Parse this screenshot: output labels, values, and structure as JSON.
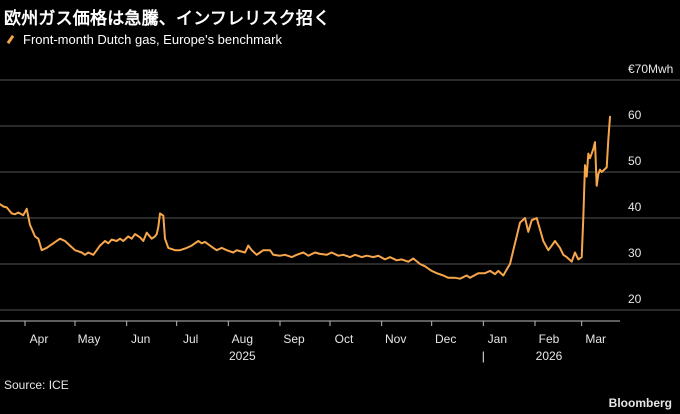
{
  "title": "欧州ガス価格は急騰、インフレリスク招く",
  "legend_label": "Front-month Dutch gas, Europe's benchmark",
  "source": "Source: ICE",
  "brand": "Bloomberg",
  "colors": {
    "line": "#f7a64b",
    "grid": "#555555",
    "background": "#000000"
  },
  "chart_data": {
    "type": "line",
    "title": "欧州ガス価格は急騰、インフレリスク招く",
    "ylabel": "€70Mwh",
    "ylim": [
      20,
      70
    ],
    "yticks": [
      {
        "value": 70,
        "label": "€70Mwh"
      },
      {
        "value": 60,
        "label": "60"
      },
      {
        "value": 50,
        "label": "50"
      },
      {
        "value": 40,
        "label": "40"
      },
      {
        "value": 30,
        "label": "30"
      },
      {
        "value": 20,
        "label": "20"
      }
    ],
    "xlim": [
      "2025-03-17",
      "2026-03-24"
    ],
    "month_labels": [
      {
        "date": "2025-04-01",
        "label": "Apr"
      },
      {
        "date": "2025-05-01",
        "label": "May"
      },
      {
        "date": "2025-06-01",
        "label": "Jun"
      },
      {
        "date": "2025-07-01",
        "label": "Jul"
      },
      {
        "date": "2025-08-01",
        "label": "Aug"
      },
      {
        "date": "2025-09-01",
        "label": "Sep"
      },
      {
        "date": "2025-10-01",
        "label": "Oct"
      },
      {
        "date": "2025-11-01",
        "label": "Nov"
      },
      {
        "date": "2025-12-01",
        "label": "Dec"
      },
      {
        "date": "2026-01-01",
        "label": "Jan"
      },
      {
        "date": "2026-02-01",
        "label": "Feb"
      },
      {
        "date": "2026-03-01",
        "label": "Mar"
      }
    ],
    "year_labels": [
      {
        "date": "2025-08-01",
        "label": "2025"
      },
      {
        "date": "2026-02-01",
        "label": "2026"
      }
    ],
    "year_divider": {
      "date": "2026-01-01",
      "label": "|"
    },
    "grid": true,
    "legend": "top-left",
    "series": [
      {
        "name": "Front-month Dutch gas, Europe's benchmark",
        "points": [
          [
            "2025-03-17",
            43.0
          ],
          [
            "2025-03-19",
            42.5
          ],
          [
            "2025-03-21",
            42.3
          ],
          [
            "2025-03-24",
            41.0
          ],
          [
            "2025-03-26",
            40.8
          ],
          [
            "2025-03-28",
            41.2
          ],
          [
            "2025-03-31",
            40.6
          ],
          [
            "2025-04-02",
            42.0
          ],
          [
            "2025-04-04",
            38.5
          ],
          [
            "2025-04-07",
            36.0
          ],
          [
            "2025-04-09",
            35.5
          ],
          [
            "2025-04-11",
            33.0
          ],
          [
            "2025-04-14",
            33.5
          ],
          [
            "2025-04-16",
            34.0
          ],
          [
            "2025-04-18",
            34.5
          ],
          [
            "2025-04-22",
            35.5
          ],
          [
            "2025-04-25",
            35.0
          ],
          [
            "2025-04-28",
            34.0
          ],
          [
            "2025-05-01",
            33.0
          ],
          [
            "2025-05-05",
            32.5
          ],
          [
            "2025-05-07",
            32.0
          ],
          [
            "2025-05-09",
            32.5
          ],
          [
            "2025-05-12",
            32.0
          ],
          [
            "2025-05-14",
            33.0
          ],
          [
            "2025-05-16",
            34.0
          ],
          [
            "2025-05-19",
            35.0
          ],
          [
            "2025-05-21",
            34.5
          ],
          [
            "2025-05-23",
            35.3
          ],
          [
            "2025-05-26",
            35.0
          ],
          [
            "2025-05-28",
            35.5
          ],
          [
            "2025-05-30",
            35.0
          ],
          [
            "2025-06-02",
            36.0
          ],
          [
            "2025-06-04",
            35.5
          ],
          [
            "2025-06-06",
            36.5
          ],
          [
            "2025-06-09",
            35.8
          ],
          [
            "2025-06-11",
            35.0
          ],
          [
            "2025-06-13",
            36.8
          ],
          [
            "2025-06-16",
            35.5
          ],
          [
            "2025-06-18",
            36.0
          ],
          [
            "2025-06-19",
            36.5
          ],
          [
            "2025-06-20",
            38.0
          ],
          [
            "2025-06-21",
            41.0
          ],
          [
            "2025-06-23",
            40.5
          ],
          [
            "2025-06-24",
            35.5
          ],
          [
            "2025-06-26",
            33.5
          ],
          [
            "2025-06-30",
            33.0
          ],
          [
            "2025-07-03",
            33.0
          ],
          [
            "2025-07-07",
            33.5
          ],
          [
            "2025-07-10",
            34.0
          ],
          [
            "2025-07-14",
            35.0
          ],
          [
            "2025-07-16",
            34.5
          ],
          [
            "2025-07-18",
            34.8
          ],
          [
            "2025-07-21",
            34.0
          ],
          [
            "2025-07-23",
            33.5
          ],
          [
            "2025-07-25",
            33.0
          ],
          [
            "2025-07-28",
            33.5
          ],
          [
            "2025-07-31",
            33.0
          ],
          [
            "2025-08-04",
            32.5
          ],
          [
            "2025-08-06",
            33.0
          ],
          [
            "2025-08-08",
            32.8
          ],
          [
            "2025-08-11",
            32.5
          ],
          [
            "2025-08-13",
            34.0
          ],
          [
            "2025-08-15",
            33.0
          ],
          [
            "2025-08-18",
            32.0
          ],
          [
            "2025-08-20",
            32.5
          ],
          [
            "2025-08-22",
            33.0
          ],
          [
            "2025-08-26",
            33.0
          ],
          [
            "2025-08-28",
            32.0
          ],
          [
            "2025-09-01",
            31.8
          ],
          [
            "2025-09-04",
            32.0
          ],
          [
            "2025-09-08",
            31.5
          ],
          [
            "2025-09-11",
            32.0
          ],
          [
            "2025-09-15",
            32.5
          ],
          [
            "2025-09-18",
            31.8
          ],
          [
            "2025-09-22",
            32.5
          ],
          [
            "2025-09-25",
            32.2
          ],
          [
            "2025-09-29",
            32.0
          ],
          [
            "2025-10-02",
            32.5
          ],
          [
            "2025-10-06",
            31.8
          ],
          [
            "2025-10-09",
            32.0
          ],
          [
            "2025-10-13",
            31.5
          ],
          [
            "2025-10-16",
            32.0
          ],
          [
            "2025-10-20",
            31.5
          ],
          [
            "2025-10-23",
            31.8
          ],
          [
            "2025-10-27",
            31.5
          ],
          [
            "2025-10-30",
            31.8
          ],
          [
            "2025-11-03",
            31.0
          ],
          [
            "2025-11-06",
            31.5
          ],
          [
            "2025-11-10",
            30.8
          ],
          [
            "2025-11-13",
            31.0
          ],
          [
            "2025-11-17",
            30.5
          ],
          [
            "2025-11-20",
            31.2
          ],
          [
            "2025-11-24",
            30.0
          ],
          [
            "2025-11-27",
            29.5
          ],
          [
            "2025-12-01",
            28.5
          ],
          [
            "2025-12-04",
            28.0
          ],
          [
            "2025-12-08",
            27.5
          ],
          [
            "2025-12-11",
            27.0
          ],
          [
            "2025-12-15",
            27.0
          ],
          [
            "2025-12-18",
            26.8
          ],
          [
            "2025-12-22",
            27.5
          ],
          [
            "2025-12-24",
            27.0
          ],
          [
            "2025-12-29",
            28.0
          ],
          [
            "2026-01-02",
            28.0
          ],
          [
            "2026-01-05",
            28.5
          ],
          [
            "2026-01-08",
            27.8
          ],
          [
            "2026-01-10",
            28.5
          ],
          [
            "2026-01-13",
            27.5
          ],
          [
            "2026-01-15",
            28.8
          ],
          [
            "2026-01-17",
            30.0
          ],
          [
            "2026-01-19",
            33.0
          ],
          [
            "2026-01-21",
            36.0
          ],
          [
            "2026-01-23",
            39.0
          ],
          [
            "2026-01-26",
            40.0
          ],
          [
            "2026-01-28",
            37.0
          ],
          [
            "2026-01-30",
            39.5
          ],
          [
            "2026-02-02",
            40.0
          ],
          [
            "2026-02-04",
            37.5
          ],
          [
            "2026-02-06",
            35.0
          ],
          [
            "2026-02-09",
            33.0
          ],
          [
            "2026-02-11",
            34.0
          ],
          [
            "2026-02-13",
            35.0
          ],
          [
            "2026-02-16",
            33.5
          ],
          [
            "2026-02-18",
            32.0
          ],
          [
            "2026-02-20",
            31.5
          ],
          [
            "2026-02-23",
            30.5
          ],
          [
            "2026-02-25",
            32.5
          ],
          [
            "2026-02-27",
            31.0
          ],
          [
            "2026-03-01",
            31.5
          ],
          [
            "2026-03-02",
            40.0
          ],
          [
            "2026-03-03",
            51.5
          ],
          [
            "2026-03-04",
            49.0
          ],
          [
            "2026-03-05",
            54.0
          ],
          [
            "2026-03-06",
            53.0
          ],
          [
            "2026-03-08",
            55.0
          ],
          [
            "2026-03-09",
            56.5
          ],
          [
            "2026-03-10",
            47.0
          ],
          [
            "2026-03-11",
            49.5
          ],
          [
            "2026-03-12",
            50.5
          ],
          [
            "2026-03-13",
            50.0
          ],
          [
            "2026-03-16",
            51.0
          ],
          [
            "2026-03-17",
            57.0
          ],
          [
            "2026-03-18",
            62.0
          ]
        ]
      }
    ]
  }
}
